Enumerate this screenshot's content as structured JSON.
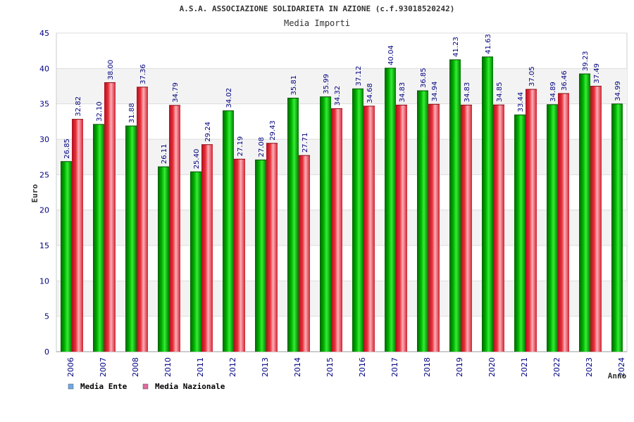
{
  "chart_data": {
    "type": "bar",
    "title": "A.S.A. ASSOCIAZIONE SOLIDARIETA IN AZIONE (c.f.93018520242)",
    "subtitle": "Media Importi",
    "xlabel": "Anno",
    "ylabel": "Euro",
    "ylim": [
      0,
      45
    ],
    "yticks": [
      0,
      5,
      10,
      15,
      20,
      25,
      30,
      35,
      40,
      45
    ],
    "grid": true,
    "legend_position": "bottom-left",
    "categories": [
      "2006",
      "2007",
      "2008",
      "2010",
      "2011",
      "2012",
      "2013",
      "2014",
      "2015",
      "2016",
      "2017",
      "2018",
      "2019",
      "2020",
      "2021",
      "2022",
      "2023",
      "2024"
    ],
    "series": [
      {
        "name": "Media Ente",
        "color": "#00c000",
        "legend_color": "#6fa8e8",
        "values": [
          26.85,
          32.1,
          31.88,
          26.11,
          25.4,
          34.02,
          27.08,
          35.81,
          35.99,
          37.12,
          40.04,
          36.85,
          41.23,
          41.63,
          33.44,
          34.89,
          39.23,
          34.99
        ],
        "labels": [
          "26.85",
          "32.10",
          "31.88",
          "26.11",
          "25.40",
          "34.02",
          "27.08",
          "35.81",
          "35.99",
          "37.12",
          "40.04",
          "36.85",
          "41.23",
          "41.63",
          "33.44",
          "34.89",
          "39.23",
          "34.99"
        ]
      },
      {
        "name": "Media Nazionale",
        "color": "#e8303a",
        "legend_color": "#e06aa0",
        "values": [
          32.82,
          38.0,
          37.36,
          34.79,
          29.24,
          27.19,
          29.43,
          27.71,
          34.32,
          34.68,
          34.83,
          34.94,
          34.83,
          34.85,
          37.05,
          36.46,
          37.49,
          null
        ],
        "labels": [
          "32.82",
          "38.00",
          "37.36",
          "34.79",
          "29.24",
          "27.19",
          "29.43",
          "27.71",
          "34.32",
          "34.68",
          "34.83",
          "34.94",
          "34.83",
          "34.85",
          "37.05",
          "36.46",
          "37.49",
          ""
        ]
      }
    ]
  }
}
